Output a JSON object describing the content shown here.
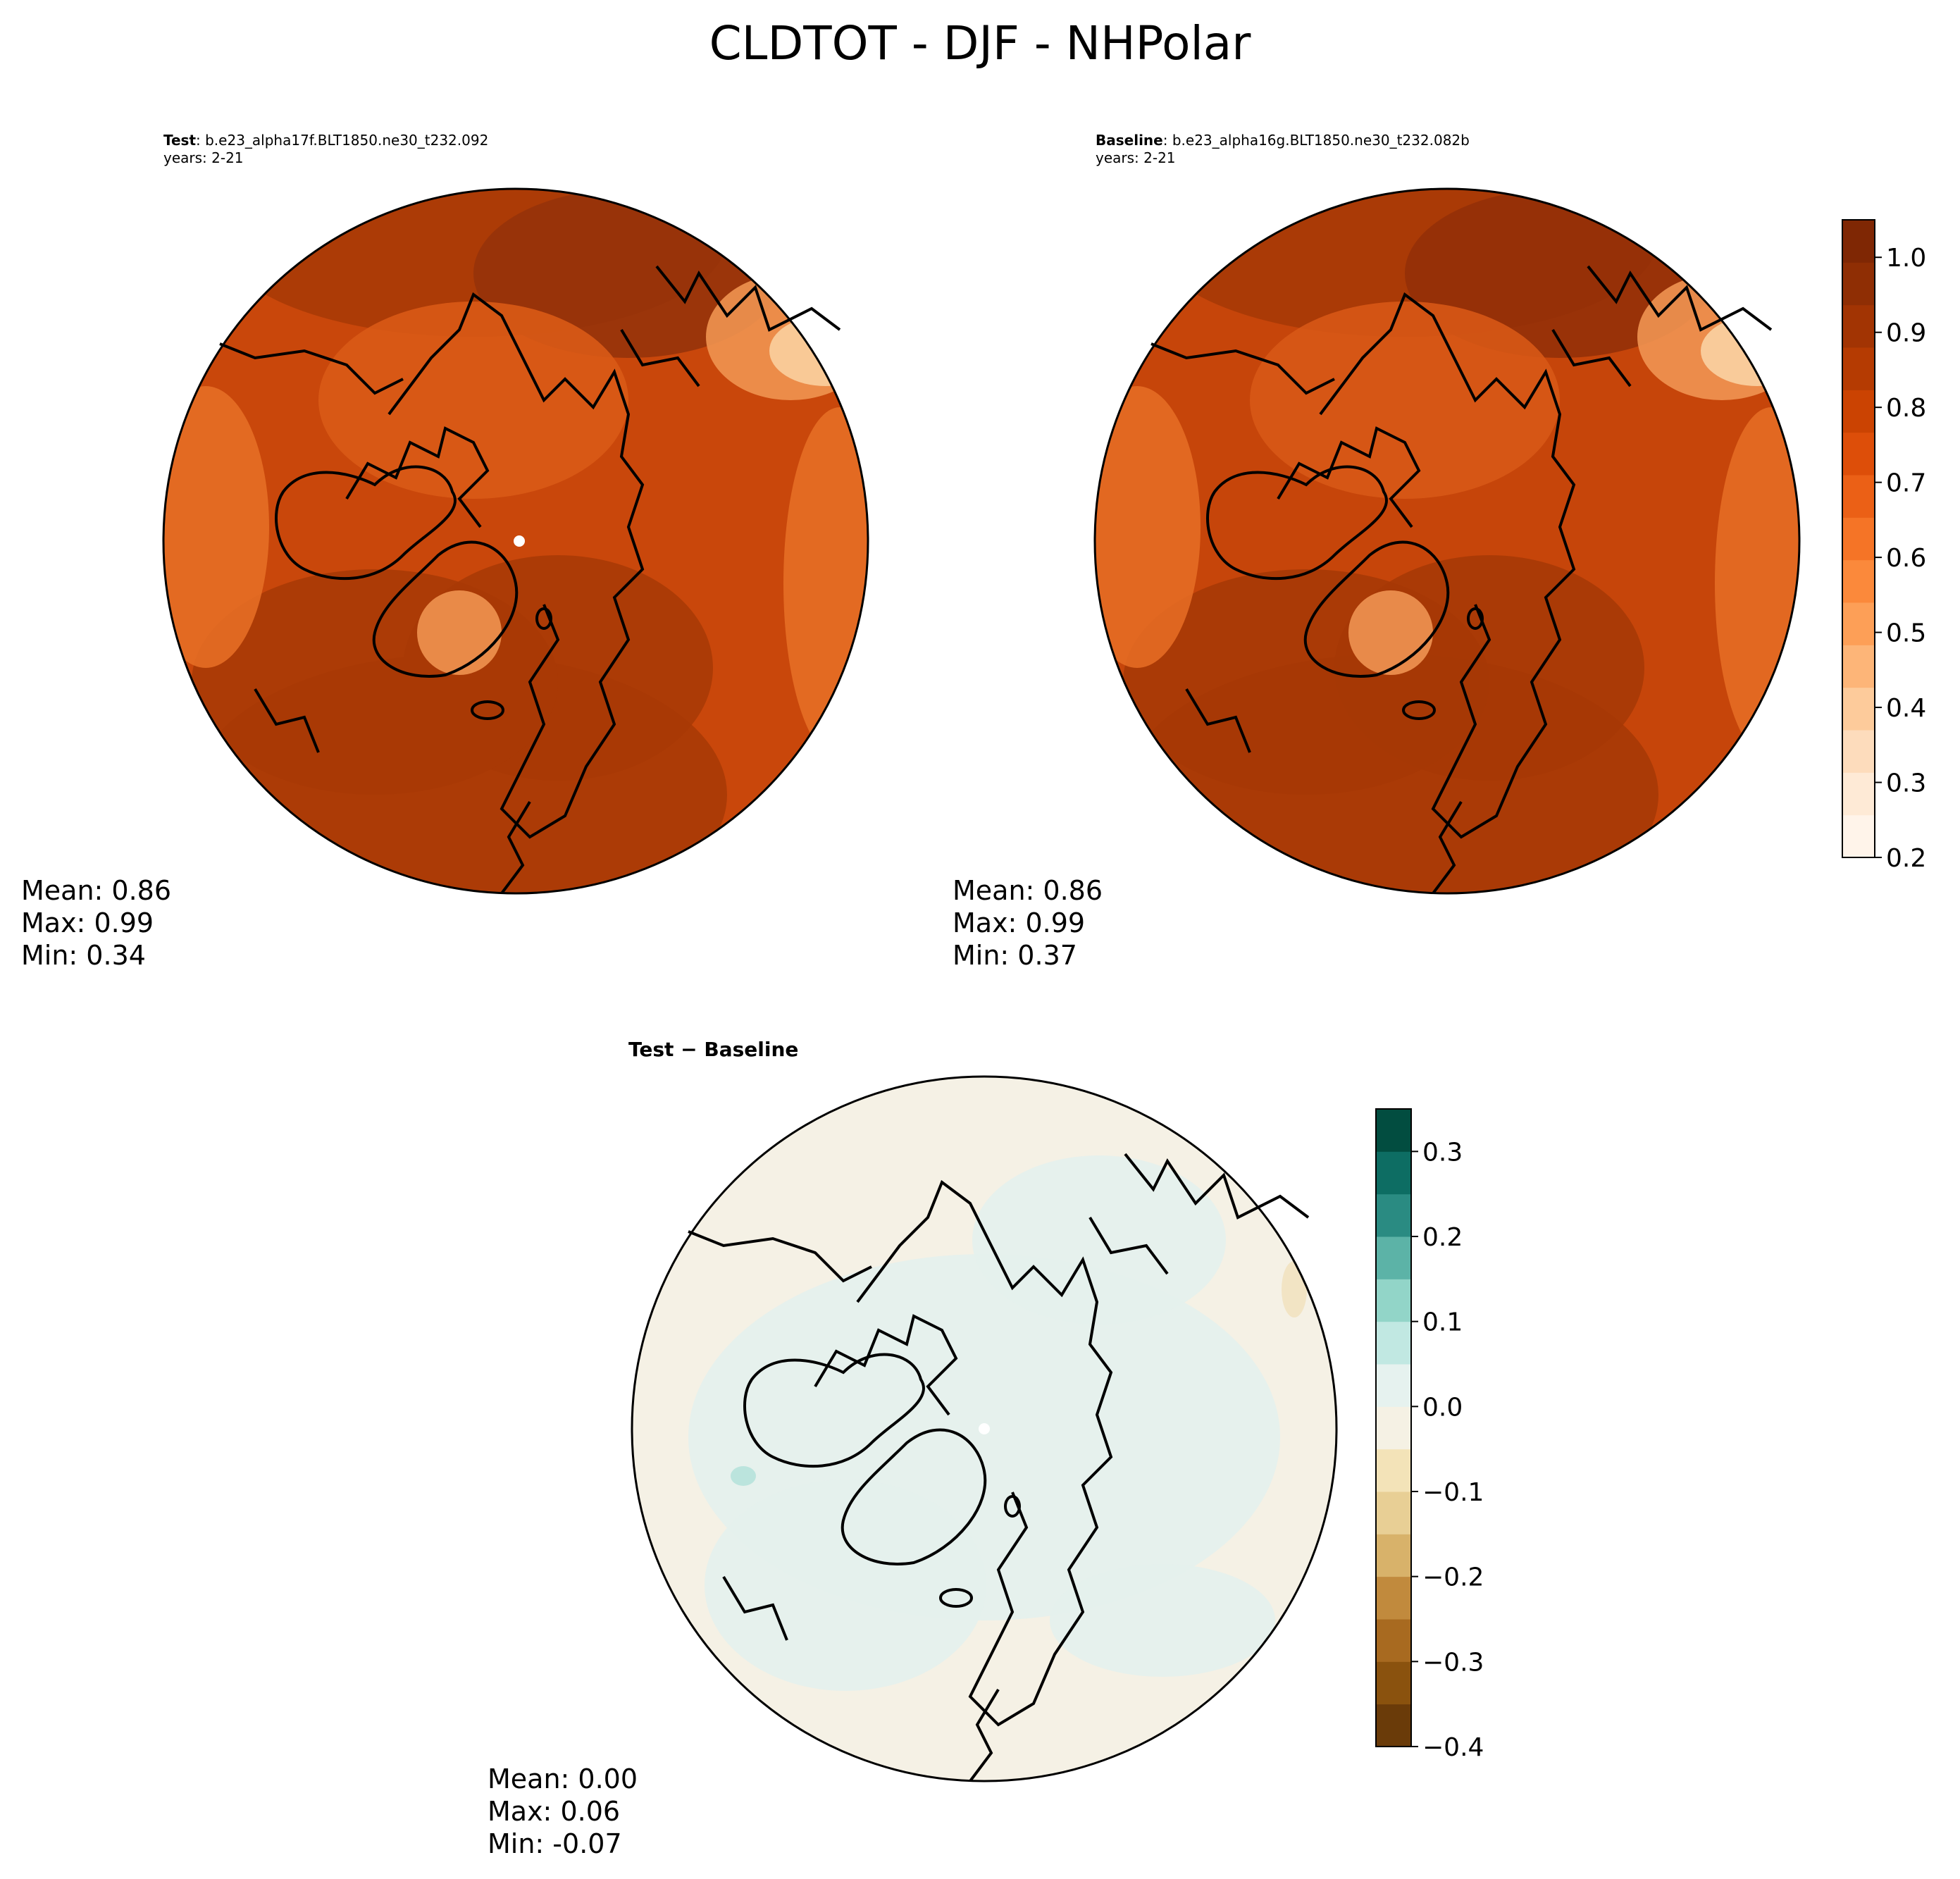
{
  "figure_title": "CLDTOT - DJF - NHPolar",
  "panels": {
    "test": {
      "label": "Test",
      "case": ": b.e23_alpha17f.BLT1850.ne30_t232.092",
      "years": "years: 2-21",
      "mean": "Mean:  0.86",
      "max": "Max:  0.99",
      "min": "Min:  0.34"
    },
    "baseline": {
      "label": "Baseline",
      "case": ": b.e23_alpha16g.BLT1850.ne30_t232.082b",
      "years": "years: 2-21",
      "mean": "Mean:  0.86",
      "max": "Max:  0.99",
      "min": "Min:  0.37"
    },
    "diff": {
      "title": "Test − Baseline",
      "mean": "Mean:  0.00",
      "max": "Max:  0.06",
      "min": "Min: -0.07"
    }
  },
  "colorbars": {
    "main": {
      "ticks": [
        "0.2",
        "0.3",
        "0.4",
        "0.5",
        "0.6",
        "0.7",
        "0.8",
        "0.9",
        "1.0"
      ],
      "range": [
        0.2,
        1.05
      ],
      "colors": [
        "#fff4ea",
        "#feead6",
        "#fddcbc",
        "#fdcb9b",
        "#fdb578",
        "#fd9f57",
        "#fb893b",
        "#f57426",
        "#eb6016",
        "#dd4e09",
        "#cb4302",
        "#b53b02",
        "#a23403",
        "#8f2e04",
        "#7f2704"
      ]
    },
    "diff": {
      "ticks": [
        "−0.4",
        "−0.3",
        "−0.2",
        "−0.1",
        "0.0",
        "0.1",
        "0.2",
        "0.3"
      ],
      "range": [
        -0.4,
        0.35
      ],
      "colors": [
        "#6a3b09",
        "#8a520e",
        "#a86a20",
        "#c18a3d",
        "#d8b26a",
        "#e8cf95",
        "#f3e3b8",
        "#f5f1e4",
        "#e6f2ef",
        "#c1e8e2",
        "#92d5c8",
        "#5cb3a7",
        "#2a8b82",
        "#0d6d63",
        "#024d40"
      ]
    }
  },
  "map_colors": {
    "test": {
      "base": "#c9470b",
      "shades": [
        "#a83a05",
        "#96330a",
        "#d95a16",
        "#e66e25",
        "#f09450",
        "#fbcf9f"
      ]
    },
    "baseline": {
      "base": "#c6450a",
      "shades": [
        "#a63805",
        "#933008",
        "#d75816",
        "#e46c24",
        "#ef9352",
        "#fbd2a3"
      ]
    },
    "diff": {
      "base": "#f5f1e5",
      "shades": [
        "#e5f0ed",
        "#f1e3c2",
        "#b8e3dc"
      ]
    },
    "coastline": "#000000"
  }
}
